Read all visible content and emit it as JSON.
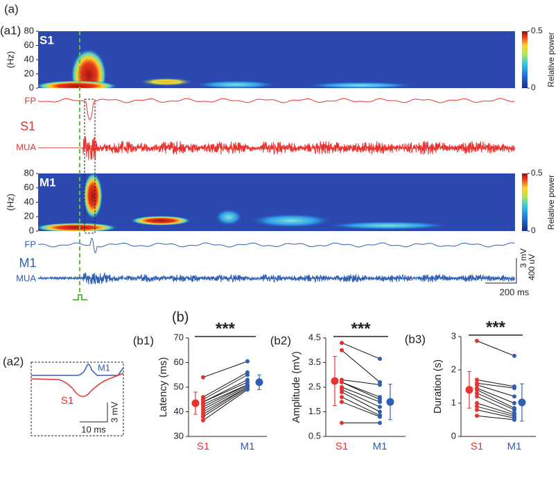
{
  "figure": {
    "panel_a": "(a)",
    "panel_a1": "(a1)",
    "panel_a2": "(a2)",
    "panel_b": "(b)"
  },
  "traces": {
    "s1_fp": "FP",
    "s1_label": "S1",
    "s1_mua": "MUA",
    "m1_fp": "FP",
    "m1_label": "M1",
    "m1_mua": "MUA",
    "scale_mv": "3 mV",
    "scale_uv": "400 uV",
    "scale_ms": "200 ms",
    "a2_m1": "M1",
    "a2_s1": "S1",
    "a2_mv": "3 mV",
    "a2_ms": "10 ms"
  },
  "chart_data": [
    {
      "type": "heatmap",
      "label": "S1",
      "ylabel": "(Hz)",
      "ylim": [
        0,
        80
      ],
      "yticks": [
        0,
        20,
        40,
        60,
        80
      ],
      "colorbar_label": "Relative power",
      "colorbar_ticks": [
        0,
        0.5
      ]
    },
    {
      "type": "heatmap",
      "label": "M1",
      "ylabel": "(Hz)",
      "ylim": [
        0,
        80
      ],
      "yticks": [
        0,
        20,
        40,
        60,
        80
      ],
      "colorbar_label": "Relative power",
      "colorbar_ticks": [
        0,
        0.5
      ]
    },
    {
      "type": "paired",
      "panel": "(b1)",
      "ylabel": "Latency (ms)",
      "significance": "***",
      "categories": [
        "S1",
        "M1"
      ],
      "ylim": [
        30,
        70
      ],
      "yticks": [
        30,
        40,
        50,
        60,
        70
      ],
      "groups": [
        {
          "color": "#e8322f",
          "values": [
            54,
            46,
            45,
            44,
            44,
            43,
            42,
            41,
            40,
            39,
            38,
            36.5
          ],
          "mean": 43.5,
          "error": 4.5
        },
        {
          "color": "#2f5fb0",
          "values": [
            60.5,
            56,
            55,
            53,
            52,
            51,
            51,
            50.5,
            50,
            50,
            49.5,
            49
          ],
          "mean": 52,
          "error": 3
        }
      ]
    },
    {
      "type": "paired",
      "panel": "(b2)",
      "ylabel": "Amplitude (mV)",
      "significance": "***",
      "categories": [
        "S1",
        "M1"
      ],
      "ylim": [
        0.5,
        4.5
      ],
      "yticks": [
        0.5,
        1.5,
        2.5,
        3.5,
        4.5
      ],
      "groups": [
        {
          "color": "#e8322f",
          "values": [
            4.3,
            4.0,
            2.8,
            2.7,
            2.7,
            2.5,
            2.4,
            2.3,
            2.1,
            1.9,
            1.05
          ],
          "mean": 2.75,
          "error": 1.0
        },
        {
          "color": "#2f5fb0",
          "values": [
            3.65,
            2.7,
            2.6,
            2.1,
            2.0,
            1.9,
            1.7,
            1.5,
            1.35,
            1.3,
            1.05
          ],
          "mean": 1.9,
          "error": 0.72
        }
      ]
    },
    {
      "type": "paired",
      "panel": "(b3)",
      "ylabel": "Duration (s)",
      "significance": "***",
      "categories": [
        "S1",
        "M1"
      ],
      "ylim": [
        0,
        3
      ],
      "yticks": [
        0,
        1,
        2,
        3
      ],
      "groups": [
        {
          "color": "#e8322f",
          "values": [
            2.87,
            1.7,
            1.6,
            1.55,
            1.45,
            1.4,
            1.3,
            1.2,
            1.0,
            0.9,
            0.8,
            0.62
          ],
          "mean": 1.4,
          "error": 0.55
        },
        {
          "color": "#2f5fb0",
          "values": [
            2.42,
            1.5,
            1.45,
            1.2,
            1.0,
            0.85,
            0.8,
            0.7,
            0.65,
            0.6,
            0.55,
            0.5
          ],
          "mean": 1.02,
          "error": 0.56
        }
      ]
    }
  ]
}
